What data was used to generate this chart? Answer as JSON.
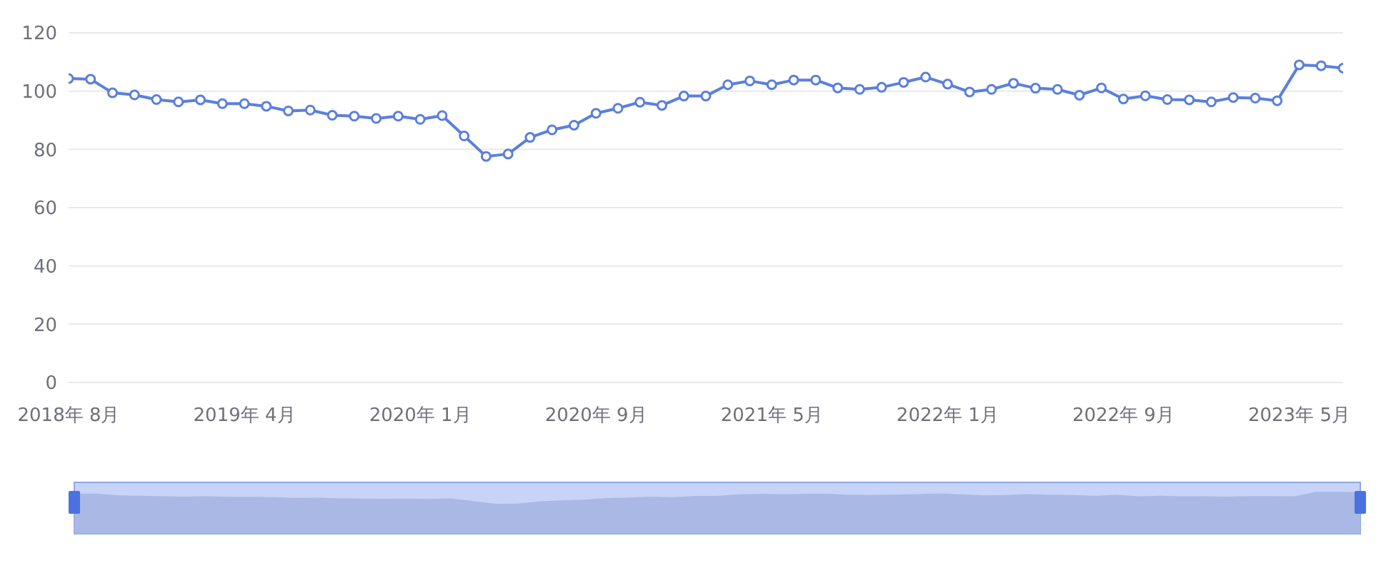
{
  "chart_data": {
    "type": "line",
    "categories": [
      "2018年 8月",
      null,
      null,
      null,
      null,
      null,
      null,
      null,
      "2019年 4月",
      null,
      null,
      null,
      null,
      null,
      null,
      null,
      "2020年 1月",
      null,
      null,
      null,
      null,
      null,
      null,
      null,
      "2020年 9月",
      null,
      null,
      null,
      null,
      null,
      null,
      null,
      "2021年 5月",
      null,
      null,
      null,
      null,
      null,
      null,
      null,
      "2022年 1月",
      null,
      null,
      null,
      null,
      null,
      null,
      null,
      "2022年 9月",
      null,
      null,
      null,
      null,
      null,
      null,
      null,
      "2023年 5月",
      null,
      null
    ],
    "series": [
      {
        "color": "#5b7fdc",
        "values": [
          104.3,
          104.1,
          99.4,
          98.7,
          97.1,
          96.3,
          97.0,
          95.7,
          95.7,
          94.8,
          93.2,
          93.5,
          91.7,
          91.4,
          90.6,
          91.4,
          90.3,
          91.6,
          84.6,
          77.6,
          78.4,
          84.1,
          86.7,
          88.3,
          92.4,
          94.1,
          96.2,
          95.1,
          98.3,
          98.3,
          102.2,
          103.5,
          102.2,
          103.8,
          103.8,
          101.1,
          100.6,
          101.3,
          103.0,
          104.8,
          102.4,
          99.7,
          100.6,
          102.7,
          101.0,
          100.6,
          98.6,
          101.1,
          97.3,
          98.4,
          97.1,
          97.0,
          96.3,
          97.8,
          97.6,
          96.7,
          109.0,
          108.7,
          107.9
        ]
      }
    ],
    "ylim": [
      0,
      120
    ],
    "yticks": [
      0,
      20,
      40,
      60,
      80,
      100,
      120
    ],
    "grid": "y",
    "marker": "circle",
    "line_style": "solid"
  }
}
